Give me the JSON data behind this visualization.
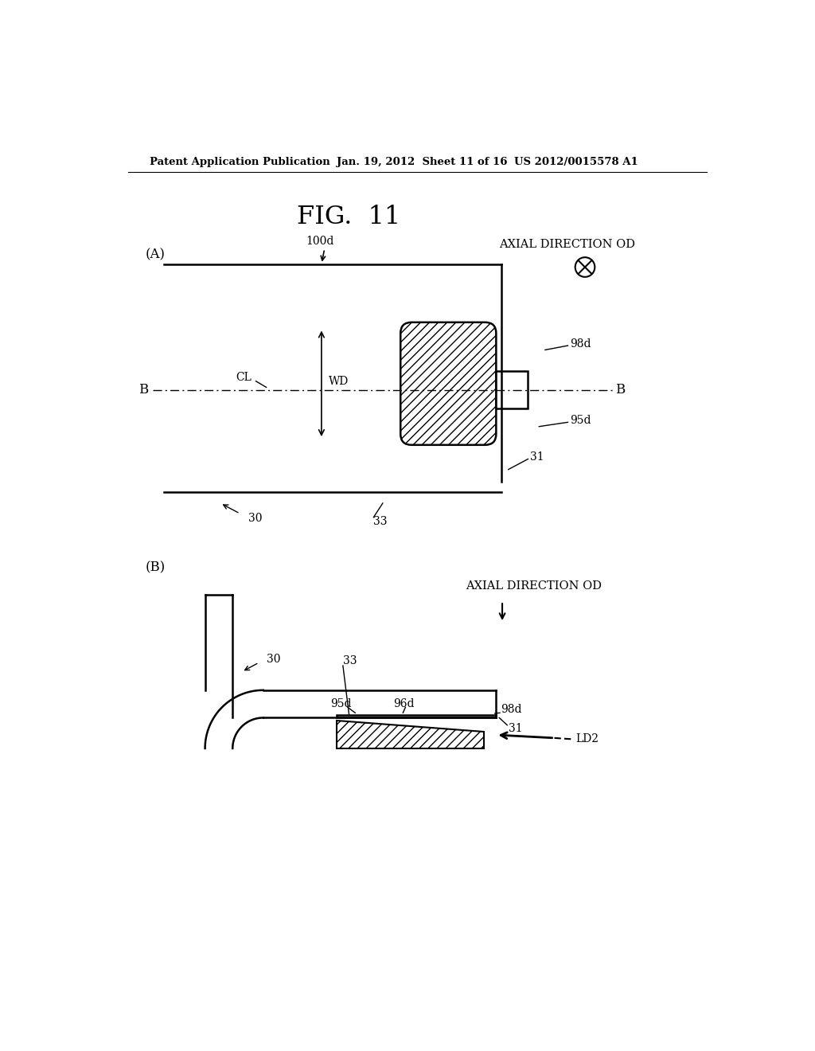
{
  "title": "FIG.  11",
  "header_left": "Patent Application Publication",
  "header_center": "Jan. 19, 2012  Sheet 11 of 16",
  "header_right": "US 2012/0015578 A1",
  "bg_color": "#ffffff",
  "text_color": "#000000"
}
